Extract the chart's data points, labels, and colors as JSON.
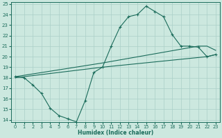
{
  "xlabel": "Humidex (Indice chaleur)",
  "xlim": [
    -0.5,
    23.5
  ],
  "ylim": [
    13.8,
    25.2
  ],
  "xticks": [
    0,
    1,
    2,
    3,
    4,
    5,
    6,
    7,
    8,
    9,
    10,
    11,
    12,
    13,
    14,
    15,
    16,
    17,
    18,
    19,
    20,
    21,
    22,
    23
  ],
  "yticks": [
    14,
    15,
    16,
    17,
    18,
    19,
    20,
    21,
    22,
    23,
    24,
    25
  ],
  "background_color": "#cce8df",
  "grid_color": "#aacfc8",
  "line_color": "#1a6b5a",
  "line1_x": [
    0,
    1,
    2,
    3,
    4,
    5,
    6,
    7,
    8,
    9,
    10,
    11,
    12,
    13,
    14,
    15,
    16,
    17,
    18,
    19,
    20,
    21,
    22,
    23
  ],
  "line1_y": [
    18.1,
    18.0,
    17.3,
    16.5,
    15.1,
    14.4,
    14.1,
    13.8,
    15.8,
    18.5,
    19.0,
    21.0,
    22.8,
    23.8,
    24.0,
    24.8,
    24.3,
    23.8,
    22.1,
    21.0,
    21.0,
    20.9,
    20.0,
    20.2
  ],
  "line2_x": [
    0,
    10,
    21,
    22,
    23
  ],
  "line2_y": [
    18.1,
    19.4,
    21.0,
    21.0,
    20.6
  ],
  "line3_x": [
    0,
    10,
    22,
    23
  ],
  "line3_y": [
    18.0,
    19.0,
    20.0,
    20.2
  ]
}
